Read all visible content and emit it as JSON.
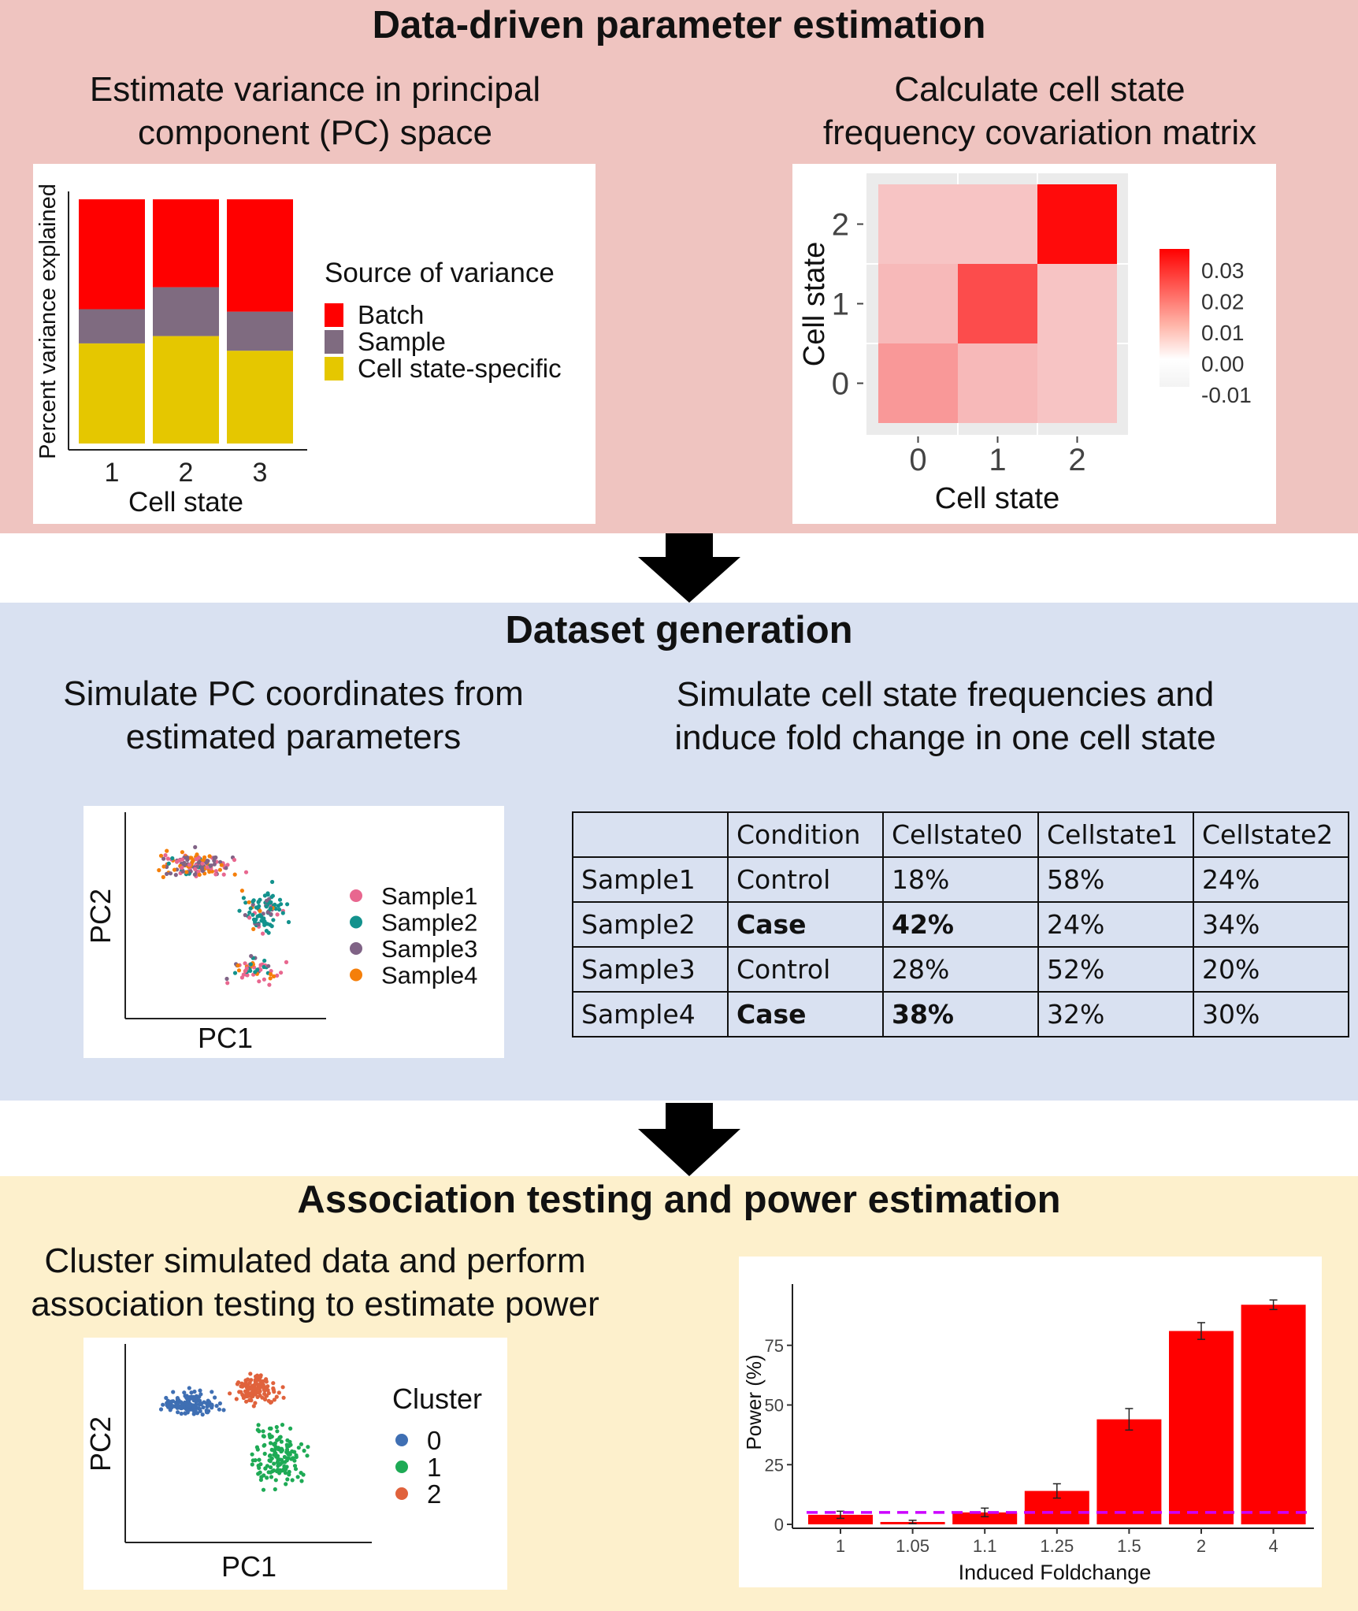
{
  "section1": {
    "title": "Data-driven parameter estimation",
    "left_subtitle_l1": "Estimate variance in principal",
    "left_subtitle_l2": "component (PC) space",
    "right_subtitle_l1": "Calculate cell state",
    "right_subtitle_l2": "frequency covariation matrix"
  },
  "section2": {
    "title": "Dataset generation",
    "left_subtitle_l1": "Simulate PC coordinates from",
    "left_subtitle_l2": "estimated parameters",
    "right_subtitle_l1": "Simulate cell state frequencies and",
    "right_subtitle_l2": "induce fold change in one cell state",
    "table": {
      "headers": [
        "",
        "Condition",
        "Cellstate0",
        "Cellstate1",
        "Cellstate2"
      ],
      "rows": [
        [
          "Sample1",
          "Control",
          "18%",
          "58%",
          "24%"
        ],
        [
          "Sample2",
          "Case",
          "42%",
          "24%",
          "34%"
        ],
        [
          "Sample3",
          "Control",
          "28%",
          "52%",
          "20%"
        ],
        [
          "Sample4",
          "Case",
          "38%",
          "32%",
          "30%"
        ]
      ]
    }
  },
  "section3": {
    "title": "Association testing and power estimation",
    "left_subtitle_l1": "Cluster simulated data and perform",
    "left_subtitle_l2": "association testing to estimate power"
  },
  "chart_data": [
    {
      "type": "bar",
      "stacked": true,
      "categories": [
        "1",
        "2",
        "3"
      ],
      "xlabel": "Cell state",
      "ylabel": "Percent variance explained",
      "legend_title": "Source of variance",
      "legend_position": "right",
      "series": [
        {
          "name": "Cell state-specific",
          "color": "#e5c700",
          "values": [
            41,
            44,
            38
          ]
        },
        {
          "name": "Sample",
          "color": "#7f6b80",
          "values": [
            14,
            20,
            16
          ]
        },
        {
          "name": "Batch",
          "color": "#ff0000",
          "values": [
            45,
            36,
            46
          ]
        }
      ]
    },
    {
      "type": "heatmap",
      "x": [
        "0",
        "1",
        "2"
      ],
      "y": [
        "0",
        "1",
        "2"
      ],
      "xlabel": "Cell state",
      "ylabel": "Cell state",
      "values": [
        [
          0.007,
          0.001,
          -0.001
        ],
        [
          0.001,
          0.021,
          -0.001
        ],
        [
          -0.001,
          -0.001,
          0.033
        ]
      ],
      "color_scale": {
        "low": "#f5f5f5",
        "high": "#ff0000",
        "range": [
          -0.01,
          0.035
        ],
        "ticks": [
          "0.03",
          "0.02",
          "0.01",
          "0.00",
          "-0.01"
        ]
      }
    },
    {
      "type": "scatter",
      "xlabel": "PC1",
      "ylabel": "PC2",
      "legend_position": "right",
      "series": [
        {
          "name": "Sample1",
          "color": "#e8678f"
        },
        {
          "name": "Sample2",
          "color": "#13928d"
        },
        {
          "name": "Sample3",
          "color": "#806386"
        },
        {
          "name": "Sample4",
          "color": "#f57f0a"
        }
      ]
    },
    {
      "type": "scatter",
      "xlabel": "PC1",
      "ylabel": "PC2",
      "legend_title": "Cluster",
      "legend_position": "right",
      "series": [
        {
          "name": "0",
          "color": "#3f6fb3"
        },
        {
          "name": "1",
          "color": "#1eaa55"
        },
        {
          "name": "2",
          "color": "#e0623c"
        }
      ]
    },
    {
      "type": "bar",
      "categories": [
        "1",
        "1.05",
        "1.1",
        "1.25",
        "1.5",
        "2",
        "4"
      ],
      "values": [
        4,
        1,
        5,
        14,
        44,
        81,
        92
      ],
      "errors": [
        1.5,
        0.7,
        1.8,
        3,
        4.5,
        3.5,
        2
      ],
      "xlabel": "Induced Foldchange",
      "ylabel": "Power (%)",
      "yticks": [
        "0",
        "25",
        "50",
        "75"
      ],
      "ylim": [
        0,
        100
      ],
      "reference_line": 5,
      "bar_color": "#ff0000",
      "reference_color": "#cc00ff"
    }
  ]
}
